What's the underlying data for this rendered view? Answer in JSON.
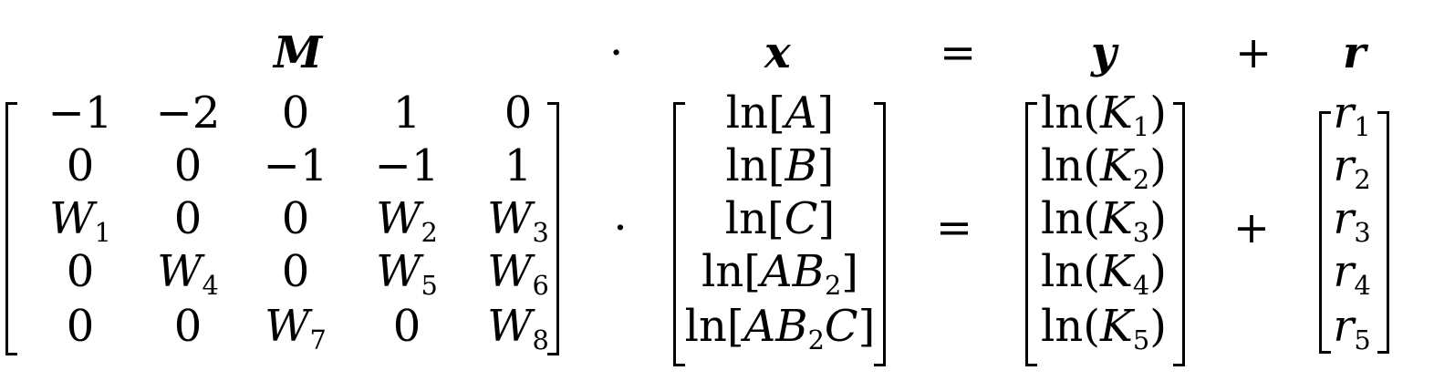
{
  "header": {
    "M": "M",
    "dot": "·",
    "x": "x",
    "eq": "=",
    "y": "y",
    "plus": "+",
    "r": "r"
  },
  "matrix_M": [
    [
      "−1",
      "−2",
      "0",
      "1",
      "0"
    ],
    [
      "0",
      "0",
      "−1",
      "−1",
      "1"
    ],
    [
      "W|1",
      "0",
      "0",
      "W|2",
      "W|3"
    ],
    [
      "0",
      "W|4",
      "0",
      "W|5",
      "W|6"
    ],
    [
      "0",
      "0",
      "W|7",
      "0",
      "W|8"
    ]
  ],
  "vector_x": [
    "ln[A]",
    "ln[B]",
    "ln[C]",
    "ln[AB2]",
    "ln[AB2C]"
  ],
  "vector_y": [
    "ln(K1)",
    "ln(K2)",
    "ln(K3)",
    "ln(K4)",
    "ln(K5)"
  ],
  "vector_r": [
    "r1",
    "r2",
    "r3",
    "r4",
    "r5"
  ],
  "operators": {
    "dot": "·",
    "eq": "=",
    "plus": "+"
  }
}
